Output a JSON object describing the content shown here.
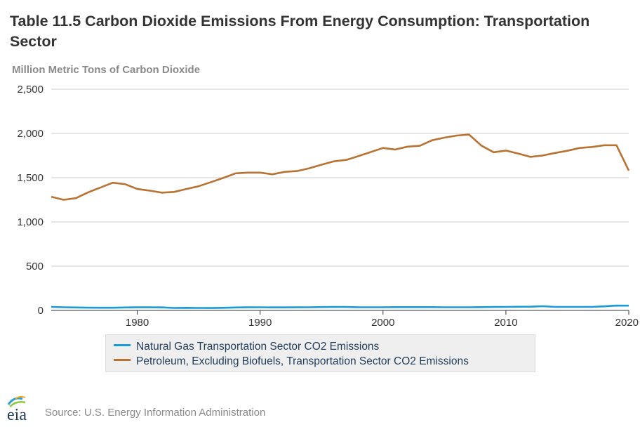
{
  "title": "Table 11.5 Carbon Dioxide Emissions From Energy Consumption: Transportation Sector",
  "unit_label": "Million Metric Tons of Carbon Dioxide",
  "source": "Source: U.S. Energy Information Administration",
  "logo_text": "eia",
  "colors": {
    "natural_gas": "#1a9ad6",
    "petroleum": "#b87333",
    "grid": "#cccccc",
    "axis": "#333333"
  },
  "chart_data": {
    "type": "line",
    "title": "Table 11.5 Carbon Dioxide Emissions From Energy Consumption: Transportation Sector",
    "ylabel": "Million Metric Tons of Carbon Dioxide",
    "xlabel": "",
    "xlim": [
      1973,
      2020
    ],
    "ylim": [
      0,
      2500
    ],
    "yticks": [
      0,
      500,
      1000,
      1500,
      2000,
      2500
    ],
    "ytick_labels": [
      "0",
      "500",
      "1,000",
      "1,500",
      "2,000",
      "2,500"
    ],
    "xticks": [
      1980,
      1990,
      2000,
      2010,
      2020
    ],
    "xtick_labels": [
      "1980",
      "1990",
      "2000",
      "2010",
      "2020"
    ],
    "grid": true,
    "legend_position": "bottom",
    "x": [
      1973,
      1974,
      1975,
      1976,
      1977,
      1978,
      1979,
      1980,
      1981,
      1982,
      1983,
      1984,
      1985,
      1986,
      1987,
      1988,
      1989,
      1990,
      1991,
      1992,
      1993,
      1994,
      1995,
      1996,
      1997,
      1998,
      1999,
      2000,
      2001,
      2002,
      2003,
      2004,
      2005,
      2006,
      2007,
      2008,
      2009,
      2010,
      2011,
      2012,
      2013,
      2014,
      2015,
      2016,
      2017,
      2018,
      2019,
      2020
    ],
    "series": [
      {
        "name": "Natural Gas Transportation Sector CO2 Emissions",
        "values": [
          40,
          36,
          33,
          31,
          30,
          30,
          33,
          35,
          35,
          34,
          28,
          29,
          28,
          27,
          29,
          33,
          35,
          36,
          34,
          34,
          35,
          36,
          38,
          39,
          39,
          36,
          36,
          36,
          37,
          37,
          37,
          37,
          36,
          36,
          36,
          37,
          39,
          40,
          41,
          42,
          48,
          40,
          40,
          40,
          40,
          46,
          55,
          54
        ]
      },
      {
        "name": "Petroleum, Excluding Biofuels, Transportation Sector CO2 Emissions",
        "values": [
          1285,
          1250,
          1268,
          1334,
          1388,
          1443,
          1427,
          1372,
          1354,
          1331,
          1339,
          1372,
          1403,
          1450,
          1497,
          1549,
          1557,
          1557,
          1538,
          1566,
          1575,
          1606,
          1647,
          1685,
          1701,
          1744,
          1790,
          1836,
          1818,
          1851,
          1860,
          1923,
          1952,
          1976,
          1987,
          1863,
          1787,
          1806,
          1773,
          1735,
          1751,
          1779,
          1804,
          1836,
          1847,
          1867,
          1867,
          1580
        ]
      }
    ]
  }
}
